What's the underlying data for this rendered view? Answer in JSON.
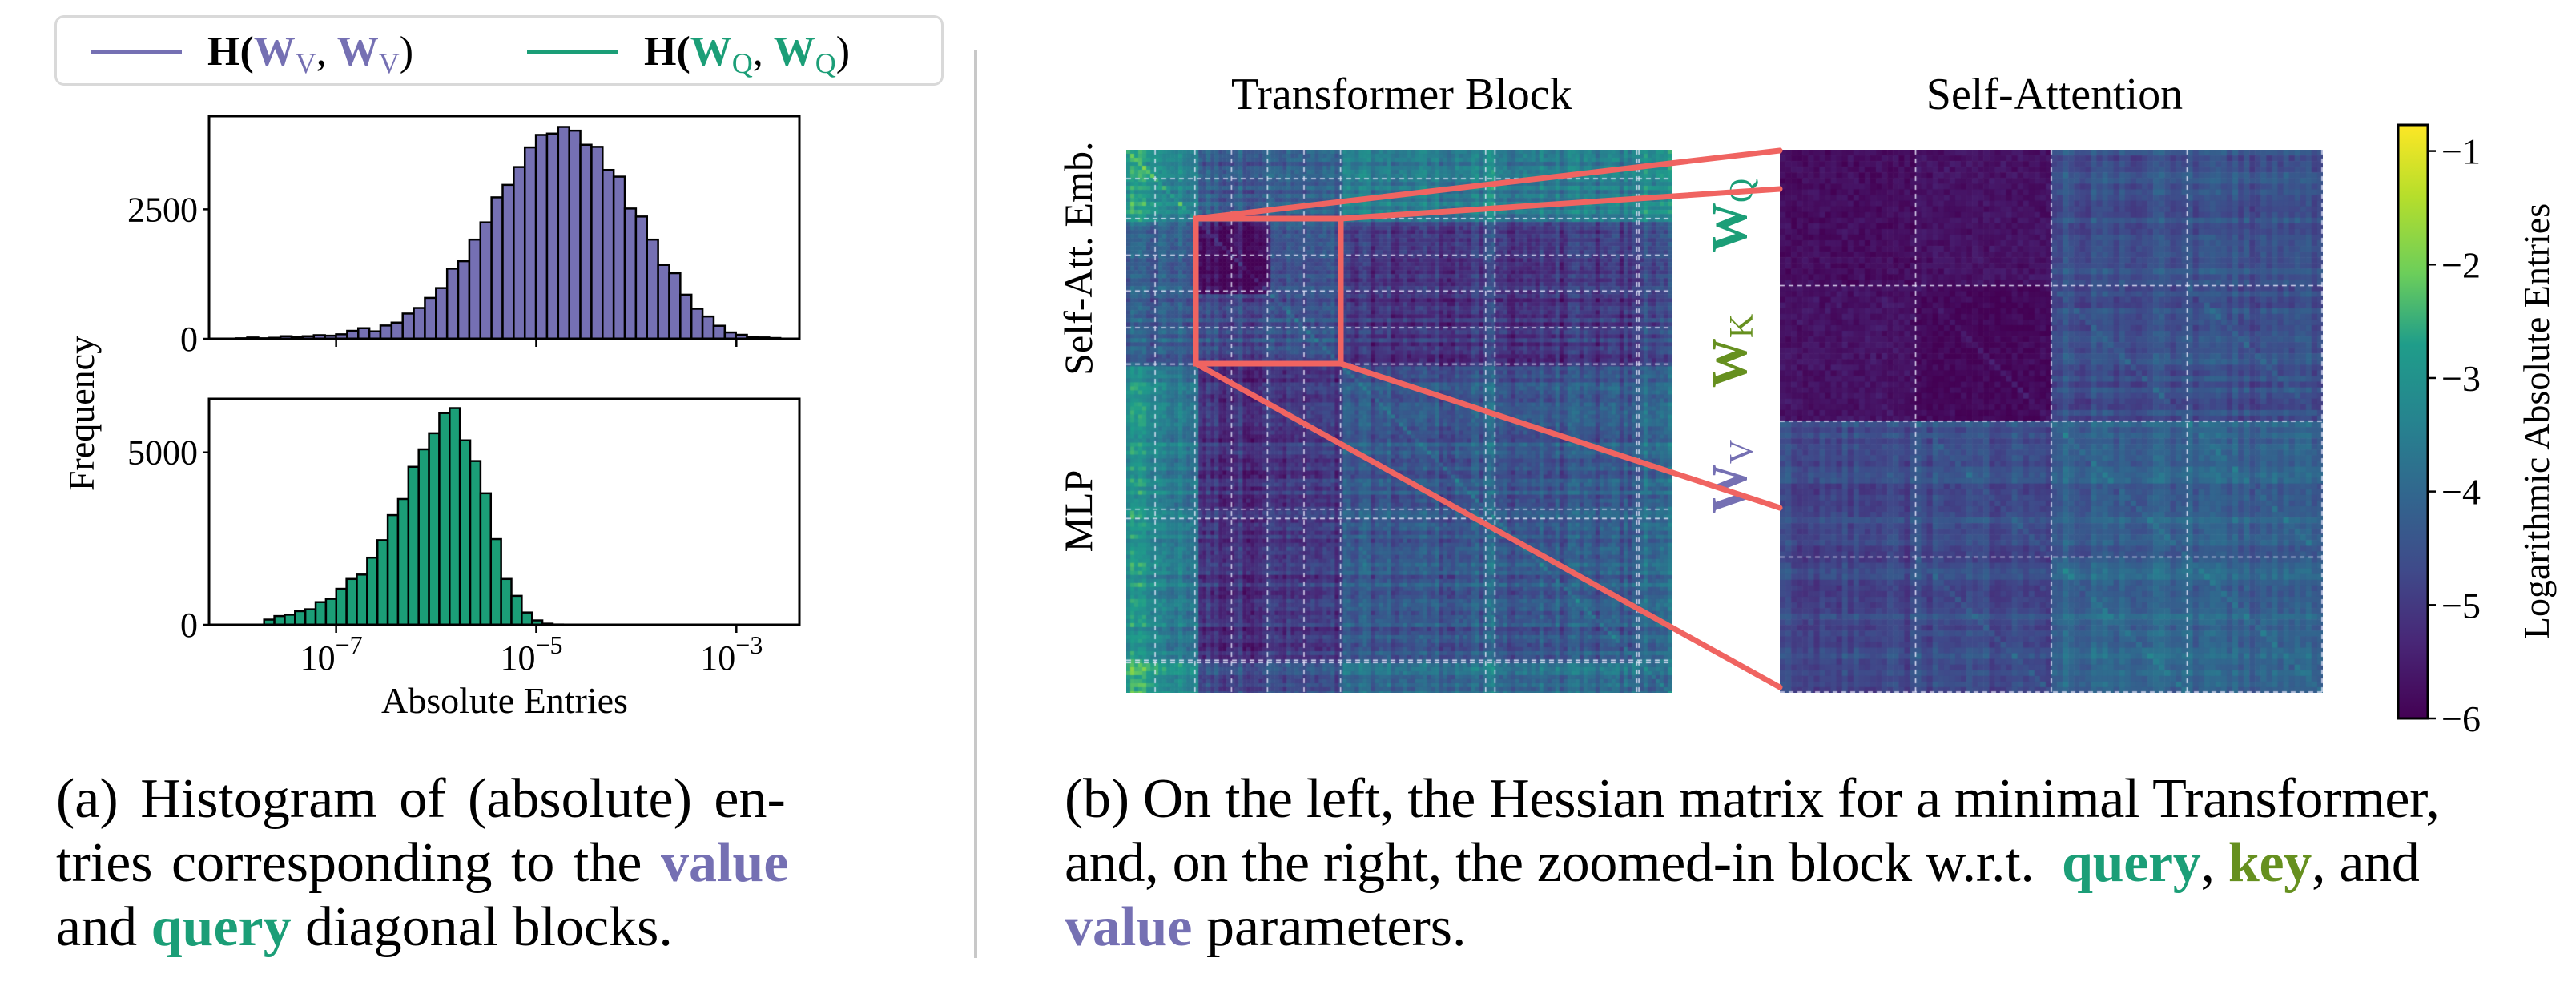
{
  "colors": {
    "value": "#7570b3",
    "query": "#1b9e77",
    "key": "#66901f",
    "zoom_box": "#f06461",
    "divider": "#c8c8c8"
  },
  "legend": {
    "items": [
      {
        "prefix": "H(",
        "w1": "W",
        "sub1": "V",
        "sep": ", ",
        "w2": "W",
        "sub2": "V",
        "suffix": ")",
        "color": "#7570b3"
      },
      {
        "prefix": "H(",
        "w1": "W",
        "sub1": "Q",
        "sep": ", ",
        "w2": "W",
        "sub2": "Q",
        "suffix": ")",
        "color": "#1b9e77"
      }
    ]
  },
  "captions": {
    "a": {
      "line1": "(a) Histogram of (absolute) en-",
      "line2_pre": "tries corresponding to the ",
      "line2_value": "value",
      "line3_pre": "and ",
      "line3_query": "query",
      "line3_post": " diagonal blocks."
    },
    "b": {
      "line1": "(b) On the left, the Hessian matrix for a minimal Transformer,",
      "line2_pre": "and, on the right, the zoomed-in block w.r.t.  ",
      "line2_query": "query",
      "line2_comma1": ", ",
      "line2_key": "key",
      "line2_post": ", and",
      "line3_value": "value",
      "line3_post": " parameters."
    }
  },
  "chart_data": [
    {
      "type": "bar",
      "name": "histogram-value-block",
      "series_label": "H(W_V, W_V)",
      "color": "#7570b3",
      "xscale": "log",
      "xlim_log10": [
        -8.27,
        -2.37
      ],
      "bin_log10_start": -8.0,
      "bin_log10_width": 0.111,
      "values": [
        10,
        25,
        10,
        20,
        50,
        40,
        50,
        70,
        60,
        87,
        154,
        205,
        144,
        257,
        313,
        488,
        595,
        790,
        980,
        1355,
        1499,
        1915,
        2248,
        2731,
        2972,
        3316,
        3696,
        3937,
        3963,
        4091,
        4019,
        3747,
        3706,
        3260,
        3131,
        2515,
        2361,
        1915,
        1427,
        1268,
        852,
        580,
        431,
        252,
        123,
        77,
        41,
        26,
        15
      ],
      "ylim": [
        0,
        4300
      ],
      "yticks": [
        {
          "value": 0,
          "label": "0"
        },
        {
          "value": 2500,
          "label": "2500"
        }
      ],
      "xticks": [
        {
          "value": -7,
          "base": "10",
          "exp": "−7"
        },
        {
          "value": -5,
          "base": "10",
          "exp": "−5"
        },
        {
          "value": -3,
          "base": "10",
          "exp": "−3"
        }
      ],
      "xlabel": "",
      "ylabel": "Frequency"
    },
    {
      "type": "bar",
      "name": "histogram-query-block",
      "series_label": "H(W_Q, W_Q)",
      "color": "#1b9e77",
      "xscale": "log",
      "xlim_log10": [
        -8.27,
        -2.37
      ],
      "bin_log10_start": -7.72,
      "bin_log10_width": 0.103,
      "values": [
        150,
        253,
        293,
        396,
        451,
        657,
        752,
        1044,
        1329,
        1456,
        1946,
        2453,
        3180,
        3647,
        4581,
        5087,
        5554,
        6139,
        6282,
        5348,
        4747,
        3813,
        2484,
        1329,
        839,
        356,
        127,
        32,
        8
      ],
      "ylim": [
        0,
        6550
      ],
      "yticks": [
        {
          "value": 0,
          "label": "0"
        },
        {
          "value": 5000,
          "label": "5000"
        }
      ],
      "xticks": [
        {
          "value": -7,
          "base": "10",
          "exp": "−7"
        },
        {
          "value": -5,
          "base": "10",
          "exp": "−5"
        },
        {
          "value": -3,
          "base": "10",
          "exp": "−3"
        }
      ],
      "xlabel": "Absolute Entries",
      "ylabel": "Frequency"
    },
    {
      "type": "heatmap",
      "name": "transformer-block-hessian",
      "title": "Transformer Block",
      "row_labels": [
        "Emb.",
        "Self-Att.",
        "MLP"
      ],
      "block_boundaries_fraction": [
        0.053,
        0.126,
        0.193,
        0.259,
        0.326,
        0.393,
        0.659,
        0.676,
        0.936,
        0.94
      ],
      "block_log10_means": {
        "emb_emb": -3.4,
        "emb_att": -4.3,
        "emb_mlp": -3.6,
        "att_qk": -5.8,
        "att_other": -4.6,
        "att_mlp": -5.1,
        "mlp_emb": -3.7,
        "mlp_att": -5.0,
        "mlp_mlp": -4.4
      },
      "zoom_region": "self-attention q/k/v block"
    },
    {
      "type": "heatmap",
      "name": "self-attention-hessian",
      "title": "Self-Attention",
      "row_labels": [
        {
          "w": "W",
          "sub": "Q",
          "color": "#1b9e77"
        },
        {
          "w": "W",
          "sub": "K",
          "color": "#66901f"
        },
        {
          "w": "W",
          "sub": "V",
          "color": "#7570b3"
        }
      ],
      "grid": 4,
      "block_log10_means": [
        [
          -5.8,
          -5.7,
          -4.5,
          -4.5
        ],
        [
          -5.7,
          -5.9,
          -4.6,
          -4.6
        ],
        [
          -4.7,
          -4.6,
          -4.2,
          -4.2
        ],
        [
          -4.7,
          -4.6,
          -4.0,
          -4.1
        ]
      ],
      "colorbar": {
        "label": "Logarithmic Absolute Entries",
        "colormap": "viridis",
        "range": [
          -6,
          -0.77
        ],
        "ticks": [
          {
            "value": -1,
            "label": "−1"
          },
          {
            "value": -2,
            "label": "−2"
          },
          {
            "value": -3,
            "label": "−3"
          },
          {
            "value": -4,
            "label": "−4"
          },
          {
            "value": -5,
            "label": "−5"
          },
          {
            "value": -6,
            "label": "−6"
          }
        ]
      }
    }
  ]
}
